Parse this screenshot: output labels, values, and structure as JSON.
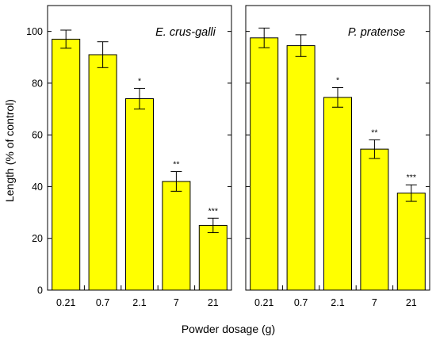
{
  "chart_data": {
    "type": "bar",
    "ylabel": "Length   (% of control)",
    "xlabel": "Powder dosage (g)",
    "ylim": [
      0,
      110
    ],
    "yticks": [
      0,
      20,
      40,
      60,
      80,
      100
    ],
    "categories": [
      "0.21",
      "0.7",
      "2.1",
      "7",
      "21"
    ],
    "bar_color": "#ffff00",
    "bar_edge_color": "#000000",
    "grid": false,
    "panels": [
      {
        "title": "E. crus-galli",
        "values": [
          97,
          91,
          74,
          42,
          25
        ],
        "errors": [
          3.5,
          5,
          4,
          3.8,
          2.8
        ],
        "significance": [
          "",
          "",
          "*",
          "**",
          "***"
        ]
      },
      {
        "title": "P. pratense",
        "values": [
          97.5,
          94.5,
          74.5,
          54.5,
          37.5
        ],
        "errors": [
          3.8,
          4.2,
          3.8,
          3.6,
          3.2
        ],
        "significance": [
          "",
          "",
          "*",
          "**",
          "***"
        ]
      }
    ]
  }
}
